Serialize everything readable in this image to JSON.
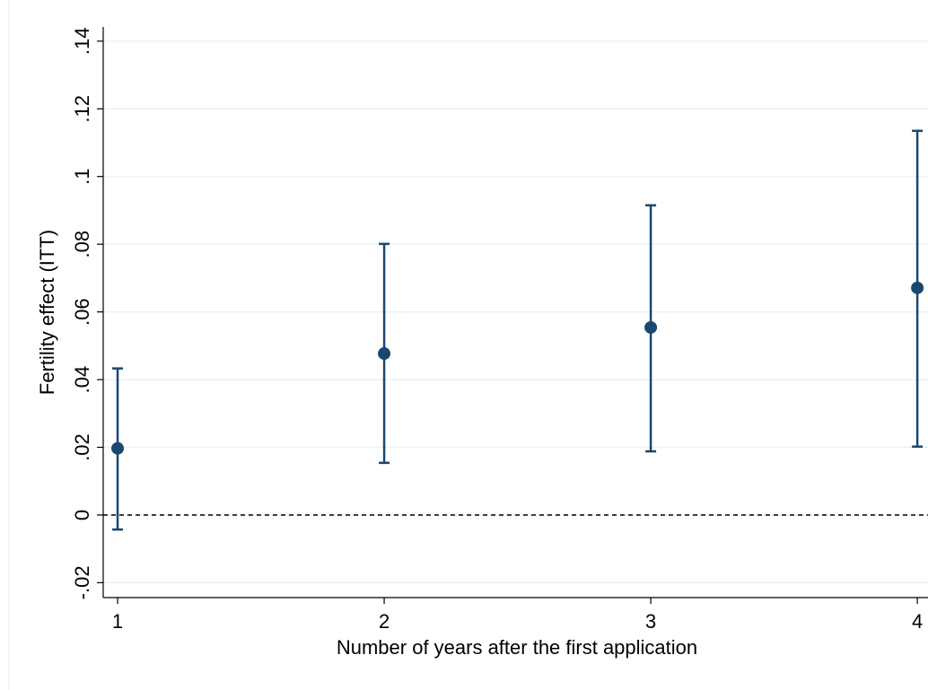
{
  "chart_data": {
    "type": "errorbar",
    "x_label": "Number of years after the first application",
    "y_label": "Fertility effect (ITT)",
    "x": [
      1,
      2,
      3,
      4
    ],
    "series": [
      {
        "name": "ITT",
        "color": "#1a476f",
        "values": [
          0.0197,
          0.0477,
          0.0554,
          0.0671
        ],
        "lower": [
          -0.0043,
          0.0154,
          0.0188,
          0.0202
        ],
        "upper": [
          0.0433,
          0.0801,
          0.0915,
          0.1135
        ]
      }
    ],
    "reference_line": 0,
    "xlim": [
      0.946,
      4.04
    ],
    "ylim": [
      -0.0244,
      0.1442
    ],
    "xticks": [
      1,
      2,
      3,
      4
    ],
    "yticks": [
      {
        "value": -0.02,
        "label": "-.02"
      },
      0,
      {
        "value": 0.02,
        "label": ".02"
      },
      {
        "value": 0.04,
        "label": ".04"
      },
      {
        "value": 0.06,
        "label": ".06"
      },
      {
        "value": 0.08,
        "label": ".08"
      },
      {
        "value": 0.1,
        "label": ".1"
      },
      {
        "value": 0.12,
        "label": ".12"
      },
      {
        "value": 0.14,
        "label": ".14"
      }
    ],
    "grid": true
  }
}
